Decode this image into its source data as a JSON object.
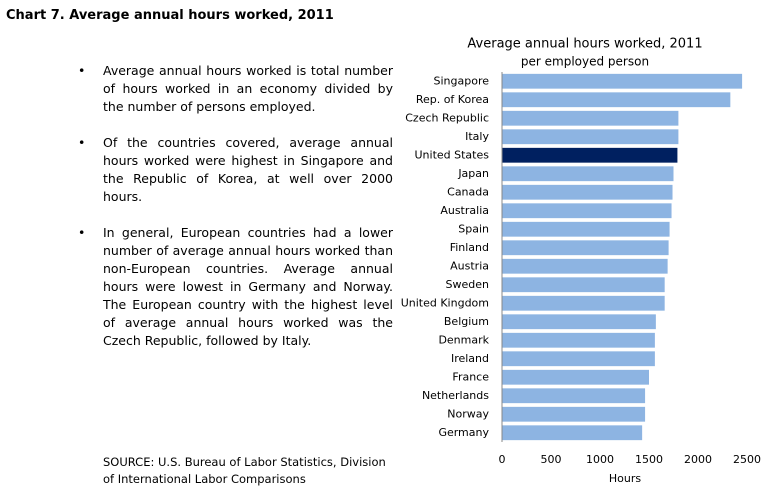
{
  "header": {
    "title": "Chart 7. Average annual hours worked, 2011"
  },
  "bullets": [
    "Average annual hours worked is total number of hours worked in an economy divided by the number of persons employed.",
    "Of the countries covered, average annual hours worked were highest in Singapore and the Republic of Korea, at well over 2000 hours.",
    "In general, European countries had a lower number of average annual hours worked than non-European countries. Average annual hours were lowest in Germany and Norway. The European country with the highest level of average annual hours worked was the Czech Republic, followed by Italy."
  ],
  "source": "SOURCE: U.S. Bureau of Labor Statistics, Division of International Labor Comparisons",
  "chart_data": {
    "type": "hbar",
    "title": "Average annual hours worked, 2011",
    "subtitle": "per employed person",
    "x_label": "Hours",
    "categories": [
      "Singapore",
      "Rep. of Korea",
      "Czech Republic",
      "Italy",
      "United States",
      "Japan",
      "Canada",
      "Australia",
      "Spain",
      "Finland",
      "Austria",
      "Sweden",
      "United Kingdom",
      "Belgium",
      "Denmark",
      "Ireland",
      "France",
      "Netherlands",
      "Norway",
      "Germany"
    ],
    "values": [
      2450,
      2330,
      1800,
      1800,
      1790,
      1750,
      1740,
      1730,
      1710,
      1700,
      1690,
      1660,
      1660,
      1570,
      1560,
      1560,
      1500,
      1460,
      1460,
      1430
    ],
    "colors": [
      "#8db4e2",
      "#8db4e2",
      "#8db4e2",
      "#8db4e2",
      "#002060",
      "#8db4e2",
      "#8db4e2",
      "#8db4e2",
      "#8db4e2",
      "#8db4e2",
      "#8db4e2",
      "#8db4e2",
      "#8db4e2",
      "#8db4e2",
      "#8db4e2",
      "#8db4e2",
      "#8db4e2",
      "#8db4e2",
      "#8db4e2",
      "#8db4e2"
    ],
    "xlim": [
      0,
      2500
    ],
    "xticks": [
      0,
      500,
      1000,
      1500,
      2000,
      2500
    ],
    "grid": false
  }
}
